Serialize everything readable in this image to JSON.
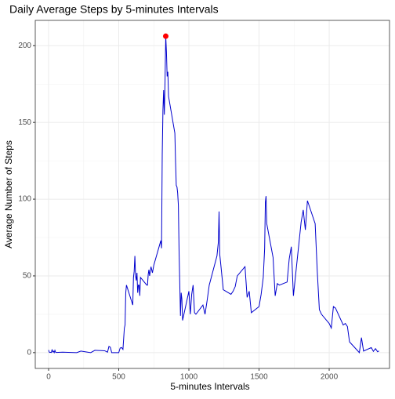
{
  "chart_data": {
    "type": "line",
    "title": "Daily Average Steps by 5-minutes Intervals",
    "x_label": "5-minutes Intervals",
    "y_label": "Average Number of Steps",
    "x": [
      0,
      5,
      10,
      15,
      20,
      25,
      30,
      35,
      40,
      45,
      50,
      55,
      100,
      200,
      230,
      300,
      330,
      400,
      420,
      430,
      440,
      450,
      500,
      510,
      520,
      530,
      540,
      545,
      550,
      555,
      600,
      605,
      610,
      615,
      620,
      625,
      630,
      635,
      640,
      645,
      650,
      655,
      700,
      705,
      710,
      715,
      720,
      730,
      740,
      750,
      800,
      805,
      810,
      815,
      820,
      825,
      830,
      835,
      840,
      845,
      850,
      855,
      900,
      905,
      910,
      915,
      920,
      925,
      930,
      935,
      940,
      945,
      950,
      955,
      1000,
      1010,
      1020,
      1030,
      1040,
      1050,
      1100,
      1115,
      1130,
      1145,
      1200,
      1210,
      1215,
      1220,
      1230,
      1245,
      1300,
      1315,
      1330,
      1345,
      1400,
      1415,
      1430,
      1445,
      1500,
      1515,
      1530,
      1540,
      1545,
      1550,
      1555,
      1600,
      1615,
      1630,
      1645,
      1700,
      1715,
      1730,
      1745,
      1800,
      1815,
      1830,
      1845,
      1900,
      1915,
      1930,
      1945,
      2000,
      2015,
      2030,
      2045,
      2100,
      2115,
      2130,
      2145,
      2200,
      2215,
      2230,
      2245,
      2300,
      2315,
      2330,
      2345,
      2355
    ],
    "series": [
      {
        "name": "steps",
        "color": "#0000cd",
        "values": [
          1.7,
          0.3,
          0.1,
          0.2,
          0.1,
          2.1,
          0.5,
          0.9,
          0,
          1.5,
          0.3,
          0.1,
          0.3,
          0,
          1,
          0,
          1.5,
          1.2,
          0.3,
          4,
          3.5,
          0,
          0,
          3,
          3.3,
          2.1,
          16,
          18,
          39,
          44,
          31,
          49,
          53,
          63,
          50,
          47,
          52,
          39,
          44,
          44,
          37,
          49,
          44,
          44,
          51,
          54,
          50,
          56,
          52,
          57,
          73,
          68,
          129,
          158,
          171,
          155,
          177,
          206.2,
          196,
          180,
          183,
          167,
          143,
          124,
          109,
          108,
          104,
          96,
          66,
          45,
          24,
          39,
          35,
          21,
          40,
          25,
          38,
          44,
          26,
          25,
          31,
          25,
          34,
          44,
          63,
          72,
          92,
          64,
          55,
          41,
          38,
          40,
          43,
          50,
          56,
          36,
          40,
          26,
          30,
          38,
          49,
          68,
          98,
          102,
          84,
          62,
          37,
          45,
          44,
          46,
          61,
          69,
          37,
          85,
          93,
          80,
          99,
          84,
          53,
          28,
          25,
          19,
          16,
          30,
          29,
          18,
          19,
          17,
          7,
          1.5,
          0,
          9.8,
          1,
          3.3,
          0.8,
          2.6,
          0.6,
          1.1
        ]
      }
    ],
    "highlight": {
      "x": 835,
      "y": 206.2,
      "color": "#ff0000"
    },
    "xlim": [
      -95,
      2430
    ],
    "ylim": [
      -10.3,
      216.5
    ],
    "xticks": [
      0,
      500,
      1000,
      1500,
      2000
    ],
    "yticks": [
      0,
      50,
      100,
      150,
      200
    ],
    "grid": true
  }
}
